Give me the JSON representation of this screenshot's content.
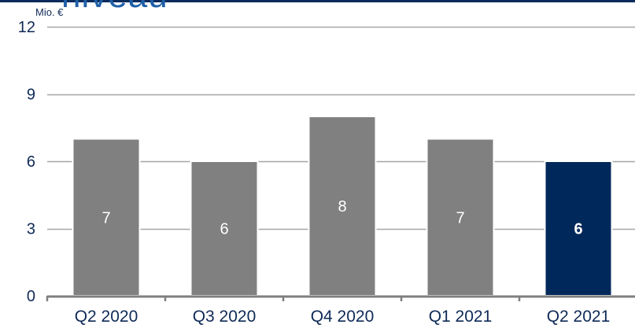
{
  "header": {
    "clipped_title_fragment": "niveau"
  },
  "chart_data": {
    "type": "bar",
    "unit": "Mio. €",
    "categories": [
      "Q2 2020",
      "Q3 2020",
      "Q4 2020",
      "Q1 2021",
      "Q2 2021"
    ],
    "values": [
      7,
      6,
      8,
      7,
      6
    ],
    "data_labels": [
      "7",
      "6",
      "8",
      "7",
      "6"
    ],
    "highlight_index": 4,
    "ylim": [
      0,
      12
    ],
    "yticks": [
      "0",
      "3",
      "6",
      "9",
      "12"
    ],
    "grid": true,
    "legend": "none",
    "colors": {
      "bar": "#808080",
      "highlight": "#00285a",
      "grid": "#a6a6a6",
      "axis": "#7f7f7f",
      "text": "#0f2a57"
    }
  }
}
